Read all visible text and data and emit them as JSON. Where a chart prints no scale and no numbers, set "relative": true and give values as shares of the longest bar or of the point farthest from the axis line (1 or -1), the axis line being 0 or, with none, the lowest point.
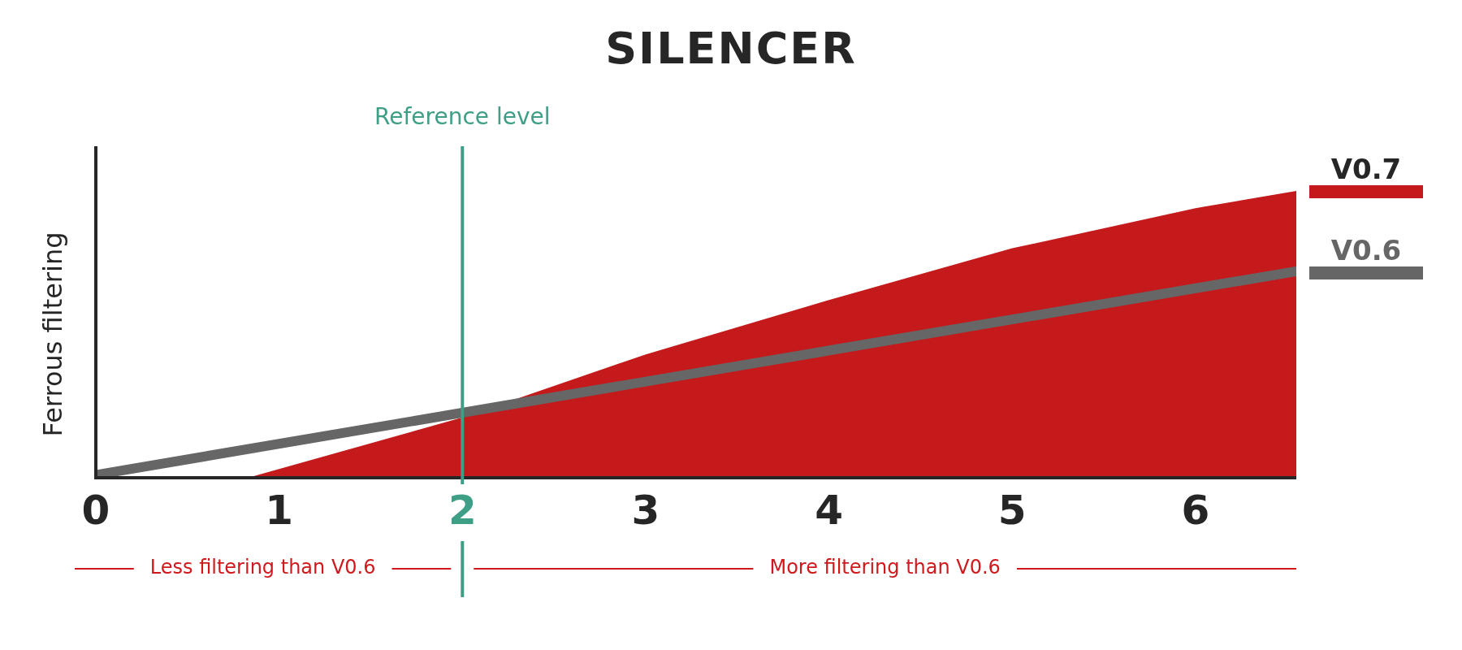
{
  "chart_data": {
    "type": "area",
    "title": "SILENCER",
    "ylabel": "Ferrous filtering",
    "relative": true,
    "xlim": [
      0,
      6.55
    ],
    "xticks": [
      0,
      1,
      2,
      3,
      4,
      5,
      6
    ],
    "legend": "right",
    "grid": false,
    "series": [
      {
        "name": "V0.7",
        "type": "area",
        "color": "#c41a1c",
        "x": [
          0,
          0.83,
          2,
          3,
          4,
          5,
          6,
          6.55
        ],
        "values": [
          0,
          0,
          0.21,
          0.43,
          0.62,
          0.8,
          0.94,
          1
        ]
      },
      {
        "name": "V0.6",
        "type": "line",
        "color": "#666666",
        "x": [
          0,
          6.55
        ],
        "values": [
          0.01,
          0.72
        ]
      }
    ],
    "ref_lines": [
      {
        "axis": "x",
        "value": 2,
        "label": "Reference level",
        "color": "#3f9e86"
      }
    ],
    "annotations": [
      "Less filtering than V0.6",
      "More filtering than V0.6"
    ]
  }
}
